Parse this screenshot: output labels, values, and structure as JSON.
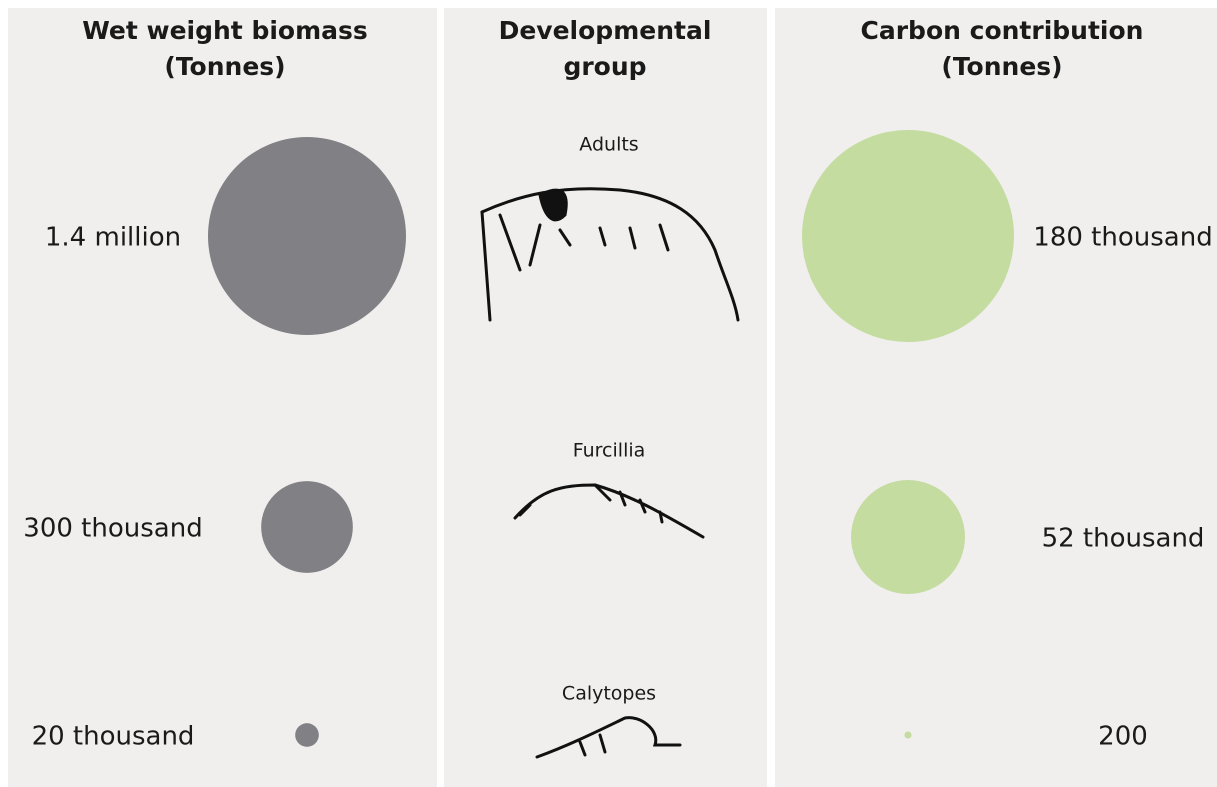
{
  "chart_data": [
    {
      "type": "bubble",
      "title": [
        "Wet weight biomass",
        "(Tonnes)"
      ],
      "color": "#808085",
      "values": [
        1400000,
        300000,
        20000
      ],
      "value_labels": [
        "1.4 million",
        "300 thousand",
        "20 thousand"
      ]
    },
    {
      "type": "bubble",
      "title": [
        "Carbon contribution",
        "(Tonnes)"
      ],
      "color": "#c4dca0",
      "values": [
        180000,
        52000,
        200
      ],
      "value_labels": [
        "180 thousand",
        "52 thousand",
        "200"
      ]
    }
  ],
  "middle": {
    "title": [
      "Developmental",
      "group"
    ],
    "groups": [
      "Adults",
      "Furcillia",
      "Calytopes"
    ]
  }
}
